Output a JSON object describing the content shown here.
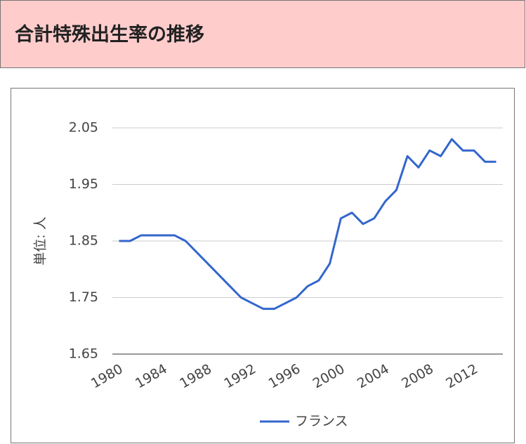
{
  "header": {
    "title": "合計特殊出生率の推移"
  },
  "chart_data": {
    "type": "line",
    "y_label": "単位: 人",
    "x": [
      1980,
      1981,
      1982,
      1983,
      1984,
      1985,
      1986,
      1987,
      1988,
      1989,
      1990,
      1991,
      1992,
      1993,
      1994,
      1995,
      1996,
      1997,
      1998,
      1999,
      2000,
      2001,
      2002,
      2003,
      2004,
      2005,
      2006,
      2007,
      2008,
      2009,
      2010,
      2011,
      2012,
      2013,
      2014
    ],
    "series": [
      {
        "name": "フランス",
        "color": "#3366cc",
        "values": [
          1.85,
          1.85,
          1.86,
          1.86,
          1.86,
          1.86,
          1.85,
          1.83,
          1.81,
          1.79,
          1.77,
          1.75,
          1.74,
          1.73,
          1.73,
          1.74,
          1.75,
          1.77,
          1.78,
          1.81,
          1.89,
          1.9,
          1.88,
          1.89,
          1.92,
          1.94,
          2.0,
          1.98,
          2.01,
          2.0,
          2.03,
          2.01,
          2.01,
          1.99,
          1.99
        ]
      }
    ],
    "xlim": [
      1979.4,
      2014.6
    ],
    "xticks": [
      1980,
      1984,
      1988,
      1992,
      1996,
      2000,
      2004,
      2008,
      2012
    ],
    "ylim": [
      1.65,
      2.05
    ],
    "yticks": [
      1.65,
      1.75,
      1.85,
      1.95,
      2.05
    ],
    "grid": true,
    "legend": "bottom"
  }
}
